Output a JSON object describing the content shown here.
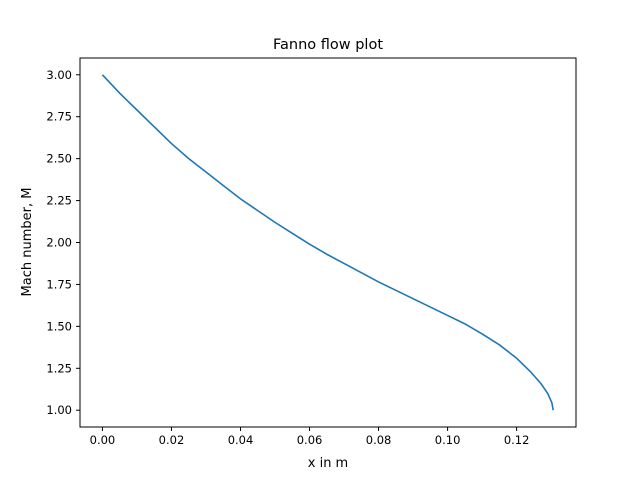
{
  "chart_data": {
    "type": "line",
    "title": "Fanno flow plot",
    "xlabel": "x in m",
    "ylabel": "Mach number, M",
    "xlim": [
      -0.0065,
      0.1372
    ],
    "ylim": [
      0.9,
      3.1
    ],
    "grid": false,
    "xticks": [
      0.0,
      0.02,
      0.04,
      0.06,
      0.08,
      0.1,
      0.12
    ],
    "xtick_labels": [
      "0.00",
      "0.02",
      "0.04",
      "0.06",
      "0.08",
      "0.10",
      "0.12"
    ],
    "yticks": [
      1.0,
      1.25,
      1.5,
      1.75,
      2.0,
      2.25,
      2.5,
      2.75,
      3.0
    ],
    "ytick_labels": [
      "1.00",
      "1.25",
      "1.50",
      "1.75",
      "2.00",
      "2.25",
      "2.50",
      "2.75",
      "3.00"
    ],
    "series": [
      {
        "color": "#1f77b4",
        "x": [
          0.0,
          0.005,
          0.01,
          0.015,
          0.02,
          0.025,
          0.03,
          0.035,
          0.04,
          0.045,
          0.05,
          0.055,
          0.06,
          0.065,
          0.07,
          0.075,
          0.08,
          0.085,
          0.09,
          0.095,
          0.1,
          0.105,
          0.11,
          0.115,
          0.12,
          0.124,
          0.127,
          0.129,
          0.1302,
          0.1306
        ],
        "y": [
          3.0,
          2.89,
          2.79,
          2.69,
          2.59,
          2.5,
          2.42,
          2.34,
          2.26,
          2.19,
          2.12,
          2.055,
          1.99,
          1.93,
          1.875,
          1.82,
          1.765,
          1.715,
          1.665,
          1.615,
          1.565,
          1.515,
          1.455,
          1.39,
          1.31,
          1.23,
          1.16,
          1.1,
          1.045,
          1.0
        ]
      }
    ]
  }
}
